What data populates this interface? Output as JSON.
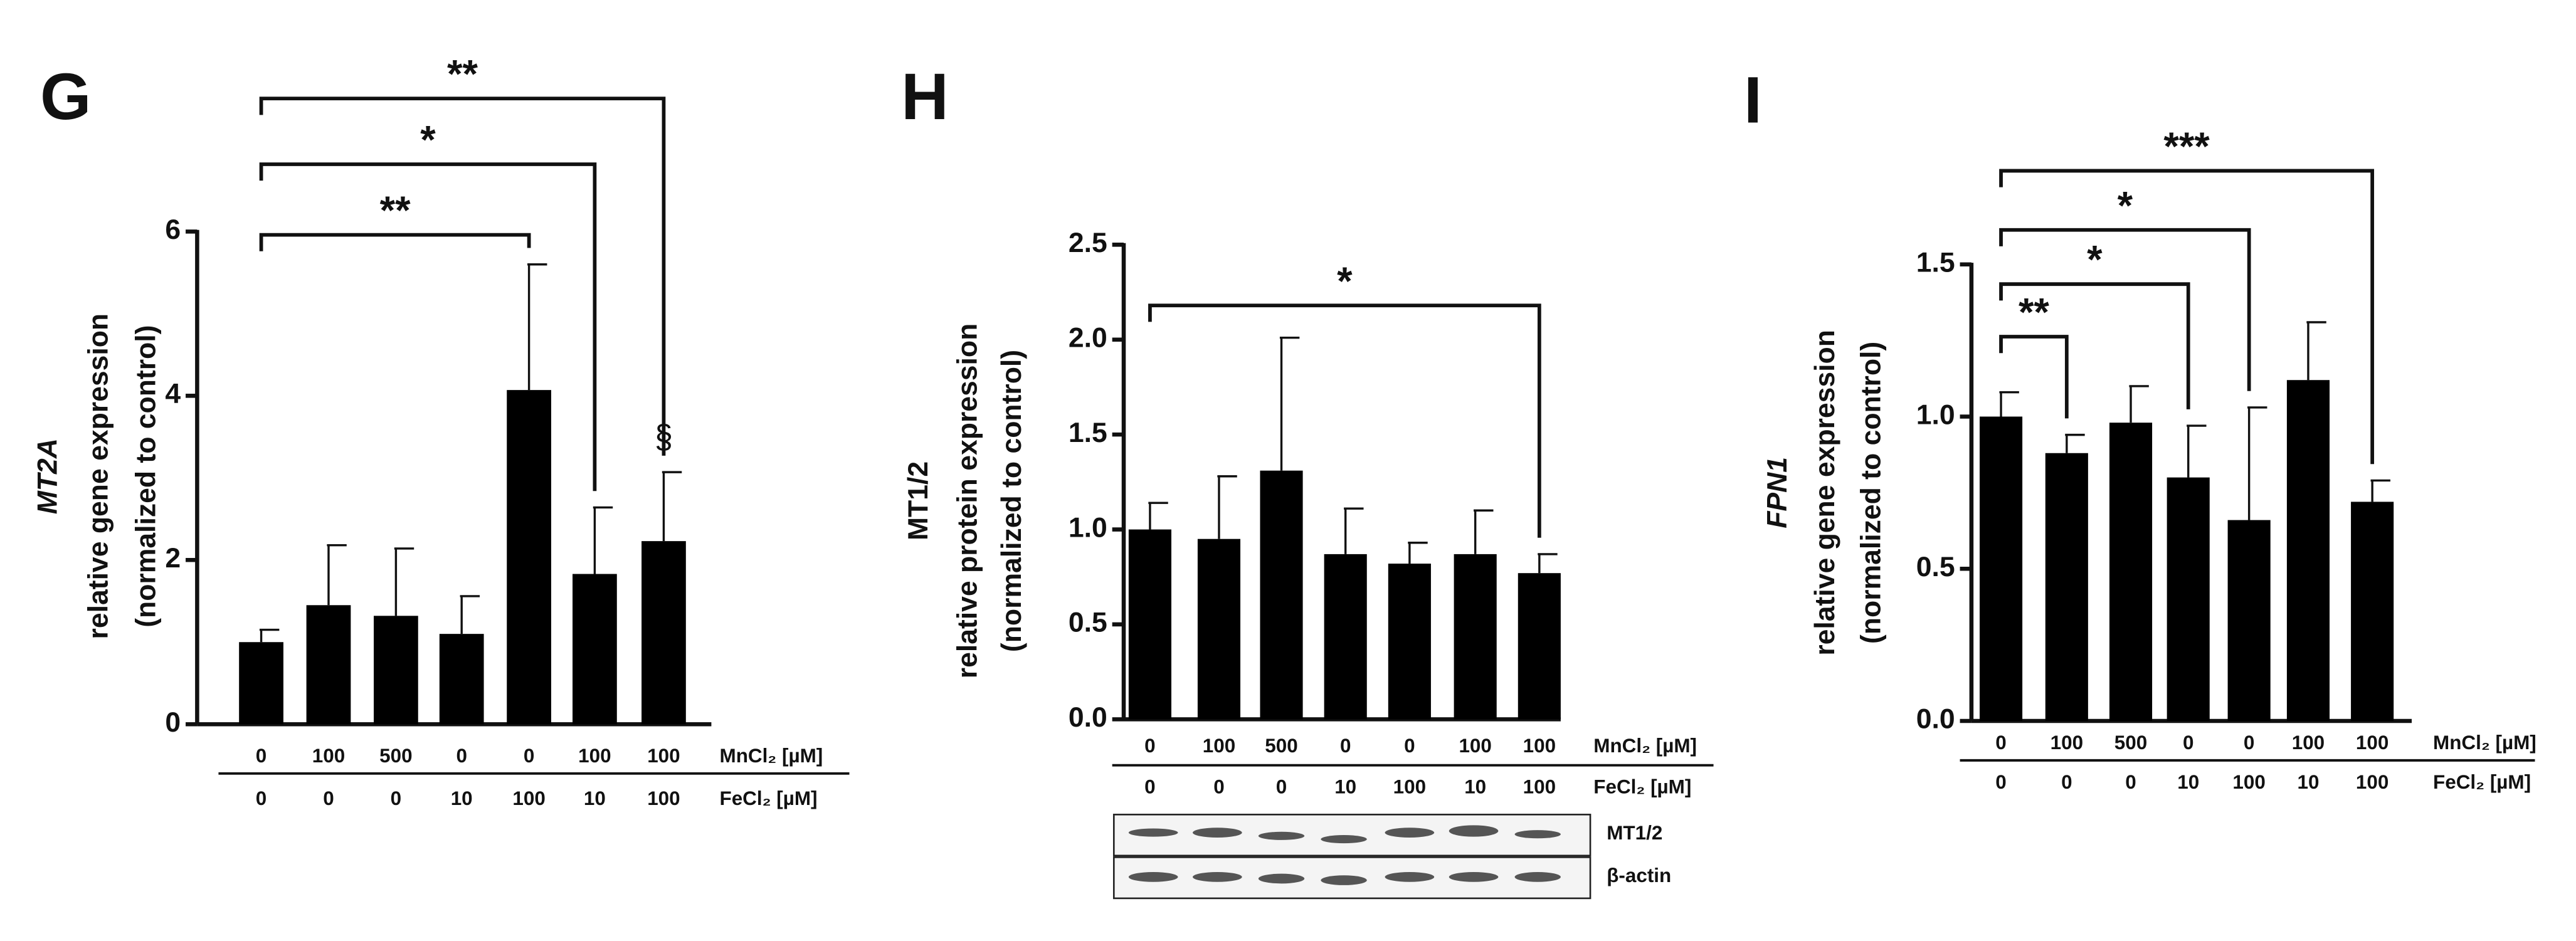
{
  "chart_data": [
    {
      "type": "bar",
      "panel": "G",
      "ylabel": [
        "MT2A",
        "relative gene expression",
        "(normalized to control)"
      ],
      "ylim": [
        0,
        6
      ],
      "yticks": [
        0,
        2,
        4,
        6
      ],
      "series": [
        {
          "color": "#000000",
          "values": [
            1.0,
            1.45,
            1.32,
            1.1,
            4.07,
            1.83,
            2.23
          ],
          "errors": [
            0.15,
            0.73,
            0.82,
            0.46,
            1.53,
            0.81,
            0.84
          ]
        }
      ],
      "conditions": [
        {
          "label": "MnCl₂ [µM]",
          "values": [
            0,
            100,
            500,
            0,
            0,
            100,
            100
          ]
        },
        {
          "label": "FeCl₂ [µM]",
          "values": [
            0,
            0,
            0,
            10,
            100,
            10,
            100
          ]
        }
      ],
      "annotations": [
        {
          "label": "**",
          "from": 0,
          "to": 4
        },
        {
          "label": "*",
          "from": 0,
          "to": 5
        },
        {
          "label": "**",
          "from": 0,
          "to": 6
        }
      ],
      "marks": [
        {
          "label": "§",
          "at": 6
        }
      ]
    },
    {
      "type": "bar",
      "panel": "H",
      "ylabel": [
        "MT1/2",
        "relative protein expression",
        "(normalized to control)"
      ],
      "ylim": [
        0,
        2.5
      ],
      "yticks": [
        {
          "value": 0,
          "label": "0.0"
        },
        {
          "value": 0.5,
          "label": "0.5"
        },
        {
          "value": 1,
          "label": "1.0"
        },
        {
          "value": 1.5,
          "label": "1.5"
        },
        {
          "value": 2,
          "label": "2.0"
        },
        {
          "value": 2.5,
          "label": "2.5"
        }
      ],
      "series": [
        {
          "color": "#000000",
          "values": [
            1.0,
            0.95,
            1.31,
            0.87,
            0.82,
            0.87,
            0.77
          ],
          "errors": [
            0.14,
            0.33,
            0.7,
            0.24,
            0.11,
            0.23,
            0.1
          ]
        }
      ],
      "conditions": [
        {
          "label": "MnCl₂ [µM]",
          "values": [
            0,
            100,
            500,
            0,
            0,
            100,
            100
          ]
        },
        {
          "label": "FeCl₂ [µM]",
          "values": [
            0,
            0,
            0,
            10,
            100,
            10,
            100
          ]
        }
      ],
      "annotations": [
        {
          "label": "*",
          "from": 0,
          "to": 6
        }
      ],
      "blot_labels": [
        "MT1/2",
        "β-actin"
      ]
    },
    {
      "type": "bar",
      "panel": "I",
      "ylabel": [
        "FPN1",
        "relative gene expression",
        "(normalized to control)"
      ],
      "ylim": [
        0,
        1.5
      ],
      "yticks": [
        {
          "value": 0,
          "label": "0.0"
        },
        {
          "value": 0.5,
          "label": "0.5"
        },
        {
          "value": 1,
          "label": "1.0"
        },
        {
          "value": 1.5,
          "label": "1.5"
        }
      ],
      "series": [
        {
          "color": "#000000",
          "values": [
            1.0,
            0.88,
            0.98,
            0.8,
            0.66,
            1.12,
            0.72
          ],
          "errors": [
            0.08,
            0.06,
            0.12,
            0.17,
            0.37,
            0.19,
            0.07
          ]
        }
      ],
      "conditions": [
        {
          "label": "MnCl₂ [µM]",
          "values": [
            0,
            100,
            500,
            0,
            0,
            100,
            100
          ]
        },
        {
          "label": "FeCl₂ [µM]",
          "values": [
            0,
            0,
            0,
            10,
            100,
            10,
            100
          ]
        }
      ],
      "annotations": [
        {
          "label": "**",
          "from": 0,
          "to": 1
        },
        {
          "label": "*",
          "from": 0,
          "to": 3
        },
        {
          "label": "*",
          "from": 0,
          "to": 4
        },
        {
          "label": "***",
          "from": 0,
          "to": 6
        }
      ]
    }
  ]
}
